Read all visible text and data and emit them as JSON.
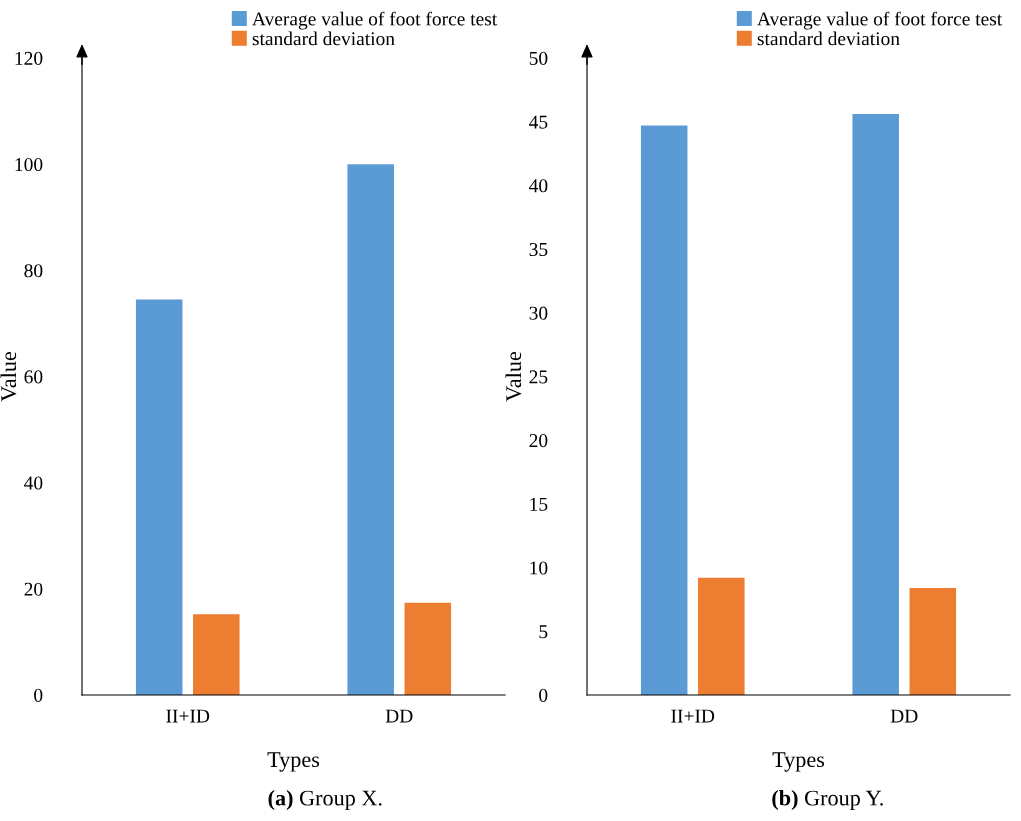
{
  "chart_data": [
    {
      "type": "bar",
      "title": "(a) Group X.",
      "xlabel": "Types",
      "ylabel": "Value",
      "categories": [
        "II+ID",
        "DD"
      ],
      "series": [
        {
          "name": "Average value of foot force test",
          "color": "#5b9bd5",
          "values": [
            74.5,
            100
          ]
        },
        {
          "name": "standard deviation",
          "color": "#ed7d31",
          "values": [
            15.2,
            17.4
          ]
        }
      ],
      "ylim": [
        0,
        120
      ],
      "yticks": [
        0,
        20,
        40,
        60,
        80,
        100,
        120
      ],
      "legend": "top right",
      "grid": false
    },
    {
      "type": "bar",
      "title": "(b) Group Y.",
      "xlabel": "Types",
      "ylabel": "Value",
      "categories": [
        "II+ID",
        "DD"
      ],
      "series": [
        {
          "name": "Average value of foot force test",
          "color": "#5b9bd5",
          "values": [
            44.7,
            45.6
          ]
        },
        {
          "name": "standard deviation",
          "color": "#ed7d31",
          "values": [
            9.2,
            8.4
          ]
        }
      ],
      "ylim": [
        0,
        50
      ],
      "yticks": [
        0,
        5,
        10,
        15,
        20,
        25,
        30,
        35,
        40,
        45,
        50
      ],
      "legend": "top right",
      "grid": false
    }
  ]
}
